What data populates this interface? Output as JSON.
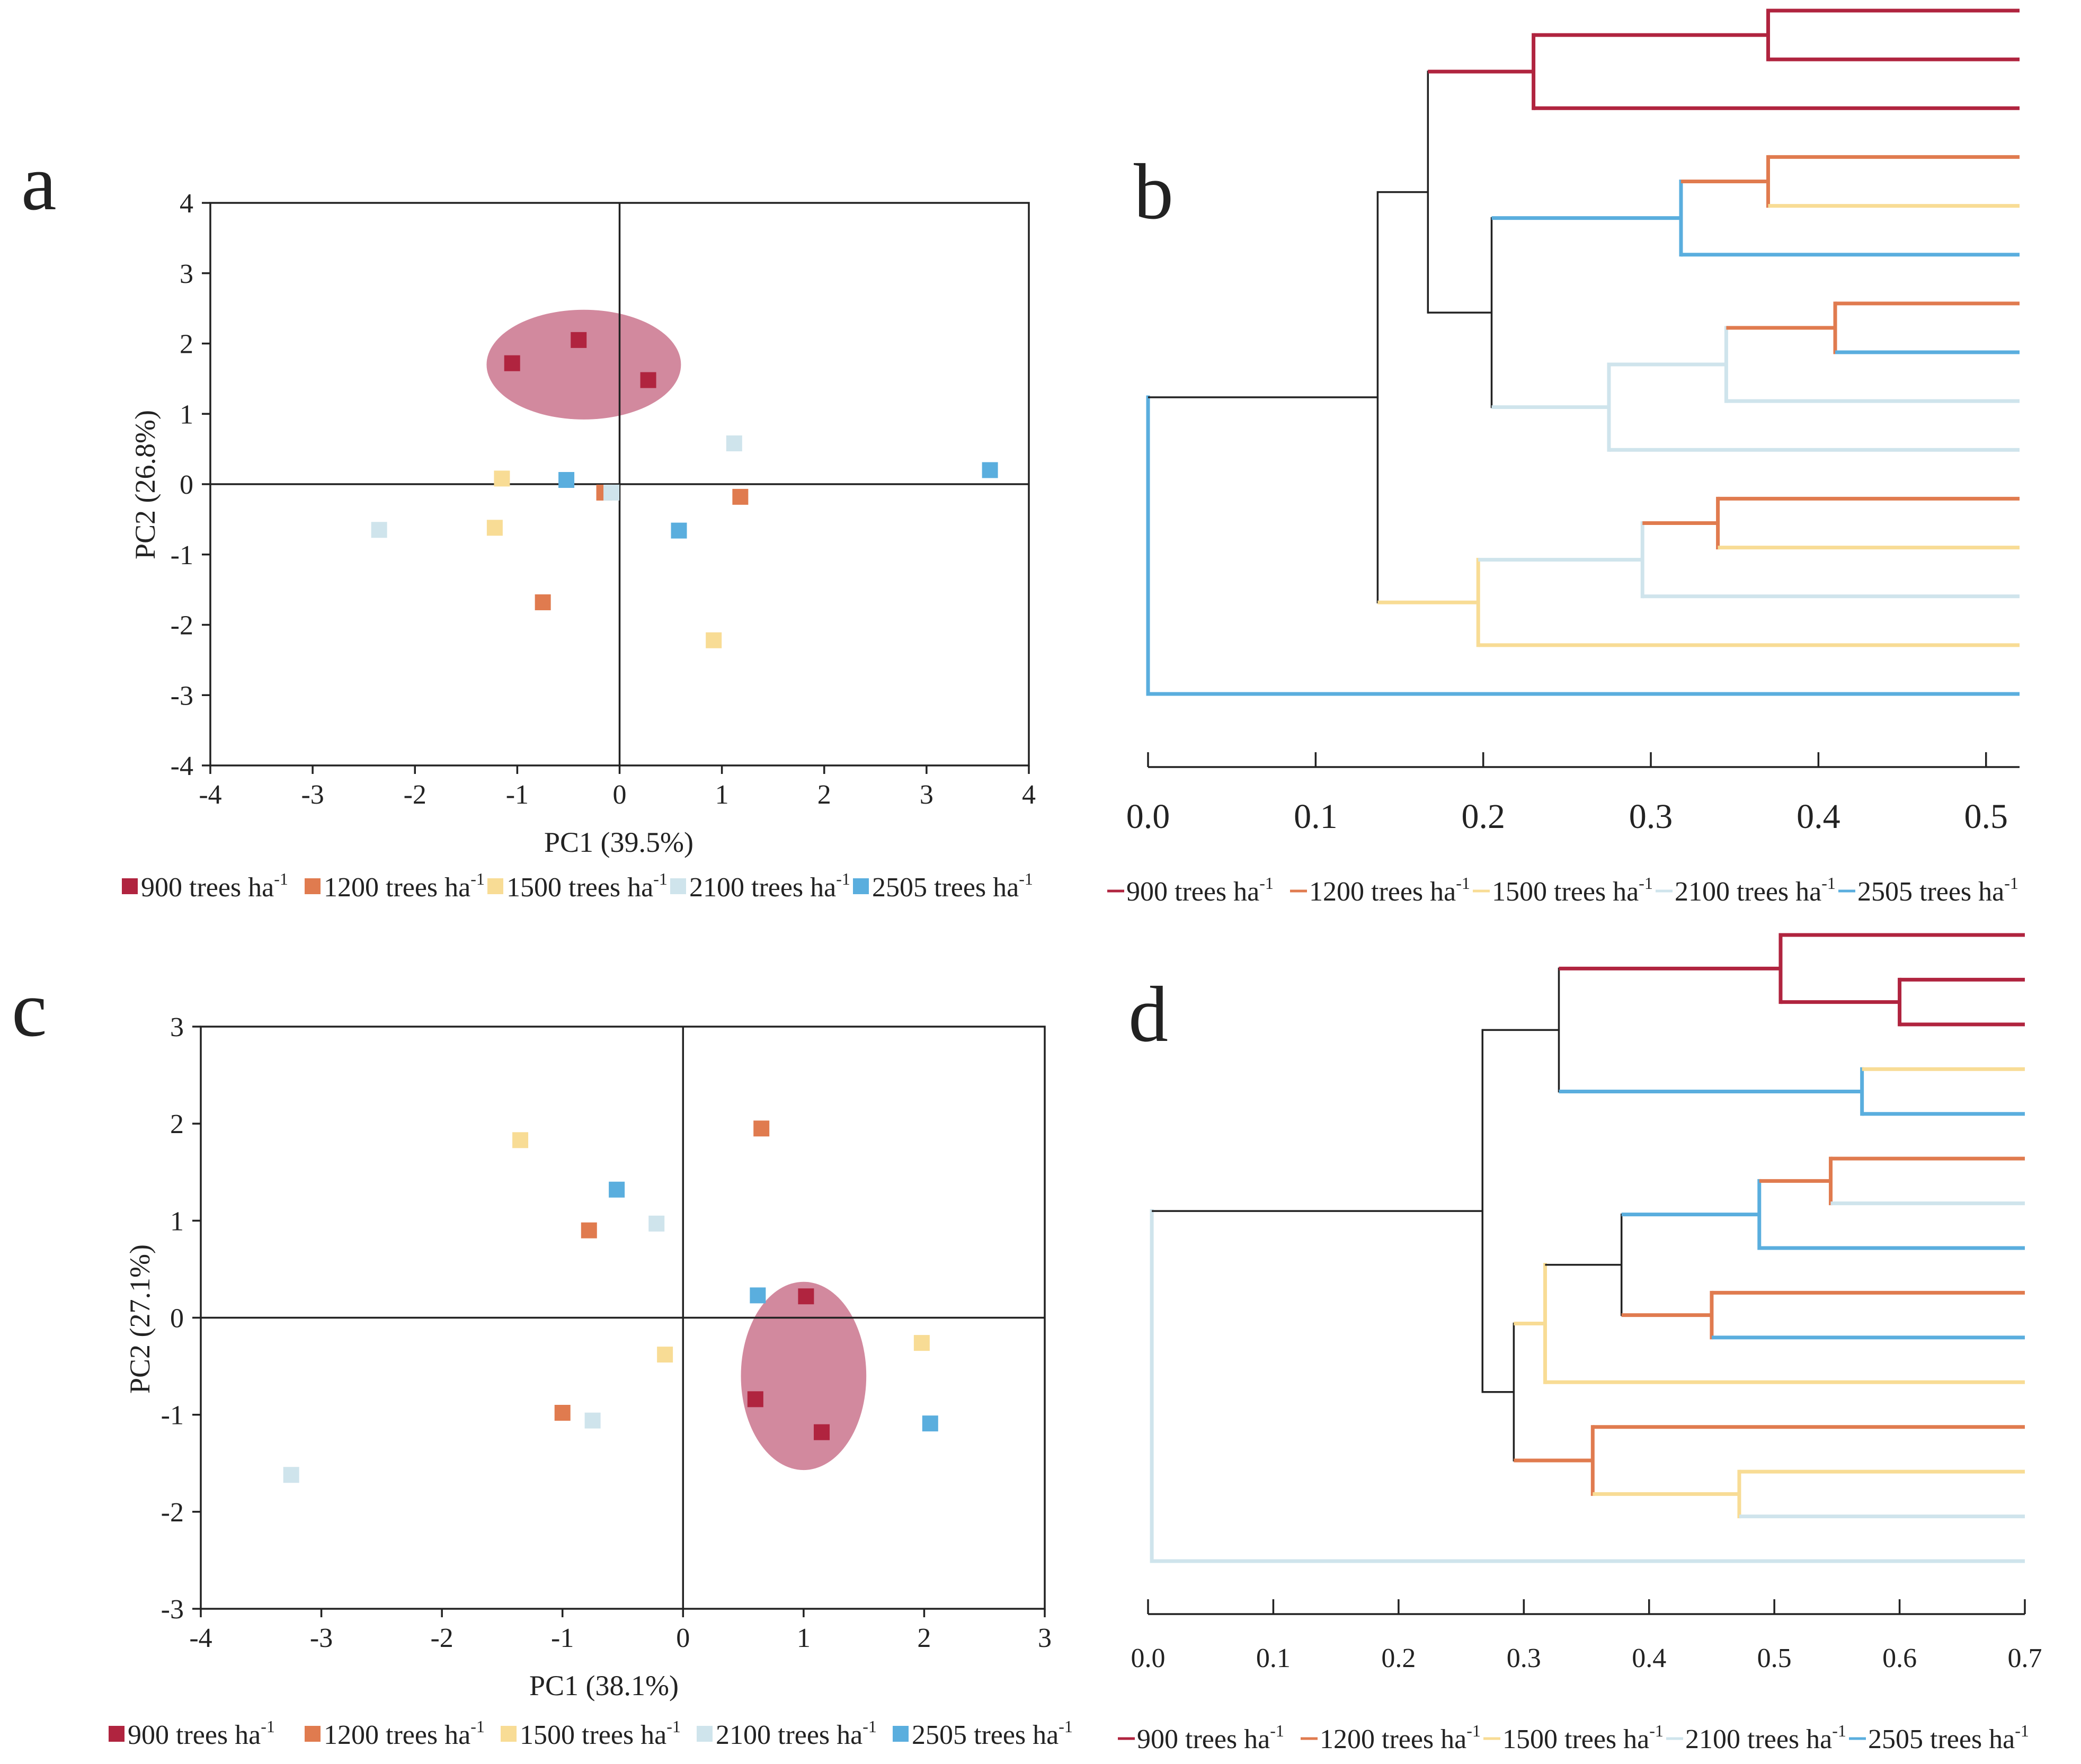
{
  "colors": {
    "900": "#b0243f",
    "1200": "#e07b4f",
    "1500": "#f8dc95",
    "2100": "#cfe4ec",
    "2505": "#5aaede",
    "black": "#222222",
    "ellipse": "#c05c78"
  },
  "legend": {
    "entries": [
      {
        "key": "900",
        "label": "900 trees ha",
        "sup": "-1"
      },
      {
        "key": "1200",
        "label": "1200 trees ha",
        "sup": "-1"
      },
      {
        "key": "1500",
        "label": "1500 trees ha",
        "sup": "-1"
      },
      {
        "key": "2100",
        "label": "2100 trees ha",
        "sup": "-1"
      },
      {
        "key": "2505",
        "label": "2505 trees ha",
        "sup": "-1"
      }
    ]
  },
  "chart_data": [
    {
      "id": "a",
      "panel_label": "a",
      "type": "scatter",
      "xlabel": "PC1 (39.5%)",
      "ylabel": "PC2 (26.8%)",
      "xlim": [
        -4,
        4
      ],
      "ylim": [
        -4,
        4
      ],
      "xticks": [
        -4,
        -3,
        -2,
        -1,
        0,
        1,
        2,
        3,
        4
      ],
      "yticks": [
        -4,
        -3,
        -2,
        -1,
        0,
        1,
        2,
        3,
        4
      ],
      "ellipse": {
        "cx": -0.35,
        "cy": 1.7,
        "rx": 0.95,
        "ry": 0.78
      },
      "points": [
        {
          "g": "900",
          "x": -1.05,
          "y": 1.72
        },
        {
          "g": "900",
          "x": -0.4,
          "y": 2.05
        },
        {
          "g": "900",
          "x": 0.28,
          "y": 1.48
        },
        {
          "g": "1200",
          "x": -0.75,
          "y": -1.68
        },
        {
          "g": "1200",
          "x": -0.15,
          "y": -0.12
        },
        {
          "g": "1200",
          "x": 1.18,
          "y": -0.18
        },
        {
          "g": "1500",
          "x": -1.15,
          "y": 0.08
        },
        {
          "g": "1500",
          "x": -1.22,
          "y": -0.62
        },
        {
          "g": "1500",
          "x": 0.92,
          "y": -2.22
        },
        {
          "g": "2100",
          "x": -2.35,
          "y": -0.65
        },
        {
          "g": "2100",
          "x": -0.08,
          "y": -0.12
        },
        {
          "g": "2100",
          "x": 1.12,
          "y": 0.58
        },
        {
          "g": "2505",
          "x": -0.52,
          "y": 0.06
        },
        {
          "g": "2505",
          "x": 0.58,
          "y": -0.66
        },
        {
          "g": "2505",
          "x": 3.62,
          "y": 0.2
        }
      ]
    },
    {
      "id": "b",
      "panel_label": "b",
      "type": "dendrogram",
      "xlim": [
        0,
        0.52
      ],
      "xticks": [
        0.0,
        0.1,
        0.2,
        0.3,
        0.4,
        0.5
      ],
      "xtick_labels": [
        "0.0",
        "0.1",
        "0.2",
        "0.3",
        "0.4",
        "0.5"
      ],
      "leaves": [
        "900",
        "900",
        "900",
        "1200",
        "1500",
        "2505",
        "1200",
        "2505",
        "2100",
        "2100",
        "1200",
        "1500",
        "2100",
        "1500",
        "2505"
      ],
      "merges": [
        {
          "a": "L0",
          "b": "L1",
          "h": 0.37,
          "c": "900"
        },
        {
          "a": "N0",
          "b": "L2",
          "h": 0.23,
          "c": "900"
        },
        {
          "a": "L3",
          "b": "L4",
          "h": 0.37,
          "c": "1200"
        },
        {
          "a": "N2",
          "b": "L5",
          "h": 0.318,
          "c": "2505"
        },
        {
          "a": "L6",
          "b": "L7",
          "h": 0.41,
          "c": "1200"
        },
        {
          "a": "N4",
          "b": "L8",
          "h": 0.345,
          "c": "2100"
        },
        {
          "a": "N5",
          "b": "L9",
          "h": 0.275,
          "c": "2100"
        },
        {
          "a": "N3",
          "b": "N6",
          "h": 0.205,
          "c": "black"
        },
        {
          "a": "N1",
          "b": "N7",
          "h": 0.167,
          "c": "black"
        },
        {
          "a": "L10",
          "b": "L11",
          "h": 0.34,
          "c": "1200"
        },
        {
          "a": "N9",
          "b": "L12",
          "h": 0.295,
          "c": "2100"
        },
        {
          "a": "N10",
          "b": "L13",
          "h": 0.197,
          "c": "1500"
        },
        {
          "a": "N8",
          "b": "N11",
          "h": 0.137,
          "c": "black"
        },
        {
          "a": "N12",
          "b": "L14",
          "h": 0.0,
          "c": "2505"
        }
      ]
    },
    {
      "id": "c",
      "panel_label": "c",
      "type": "scatter",
      "xlabel": "PC1 (38.1%)",
      "ylabel": "PC2 (27.1%)",
      "xlim": [
        -4,
        3
      ],
      "ylim": [
        -3,
        3
      ],
      "xticks": [
        -4,
        -3,
        -2,
        -1,
        0,
        1,
        2,
        3
      ],
      "yticks": [
        -3,
        -2,
        -1,
        0,
        1,
        2,
        3
      ],
      "ellipse": {
        "cx": 1.0,
        "cy": -0.6,
        "rx": 0.52,
        "ry": 0.97
      },
      "points": [
        {
          "g": "900",
          "x": 1.02,
          "y": 0.22
        },
        {
          "g": "900",
          "x": 0.6,
          "y": -0.84
        },
        {
          "g": "900",
          "x": 1.15,
          "y": -1.18
        },
        {
          "g": "1200",
          "x": 0.65,
          "y": 1.95
        },
        {
          "g": "1200",
          "x": -0.78,
          "y": 0.9
        },
        {
          "g": "1200",
          "x": -1.0,
          "y": -0.98
        },
        {
          "g": "1500",
          "x": -1.35,
          "y": 1.83
        },
        {
          "g": "1500",
          "x": -0.15,
          "y": -0.38
        },
        {
          "g": "1500",
          "x": 1.98,
          "y": -0.26
        },
        {
          "g": "2100",
          "x": -0.22,
          "y": 0.97
        },
        {
          "g": "2100",
          "x": -0.75,
          "y": -1.06
        },
        {
          "g": "2100",
          "x": -3.25,
          "y": -1.62
        },
        {
          "g": "2505",
          "x": -0.55,
          "y": 1.32
        },
        {
          "g": "2505",
          "x": 0.62,
          "y": 0.23
        },
        {
          "g": "2505",
          "x": 2.05,
          "y": -1.09
        }
      ]
    },
    {
      "id": "d",
      "panel_label": "d",
      "type": "dendrogram",
      "xlim": [
        0,
        0.7
      ],
      "xticks": [
        0.0,
        0.1,
        0.2,
        0.3,
        0.4,
        0.5,
        0.6,
        0.7
      ],
      "xtick_labels": [
        "0.0",
        "0.1",
        "0.2",
        "0.3",
        "0.4",
        "0.5",
        "0.6",
        "0.7"
      ],
      "leaves": [
        "900",
        "900",
        "900",
        "1500",
        "2505",
        "1200",
        "2100",
        "2505",
        "1200",
        "2505",
        "1500",
        "1200",
        "1500",
        "2100",
        "2100"
      ],
      "merges": [
        {
          "a": "L1",
          "b": "L2",
          "h": 0.6,
          "c": "900"
        },
        {
          "a": "L0",
          "b": "N0",
          "h": 0.505,
          "c": "900"
        },
        {
          "a": "L3",
          "b": "L4",
          "h": 0.57,
          "c": "2505"
        },
        {
          "a": "N1",
          "b": "N2",
          "h": 0.328,
          "c": "black"
        },
        {
          "a": "L5",
          "b": "L6",
          "h": 0.545,
          "c": "1200"
        },
        {
          "a": "N4",
          "b": "L7",
          "h": 0.488,
          "c": "2505"
        },
        {
          "a": "L8",
          "b": "L9",
          "h": 0.45,
          "c": "1200"
        },
        {
          "a": "N5",
          "b": "N6",
          "h": 0.378,
          "c": "black"
        },
        {
          "a": "N7",
          "b": "L10",
          "h": 0.317,
          "c": "1500"
        },
        {
          "a": "L12",
          "b": "L13",
          "h": 0.472,
          "c": "1500"
        },
        {
          "a": "L11",
          "b": "N9",
          "h": 0.355,
          "c": "1200"
        },
        {
          "a": "N8",
          "b": "N10",
          "h": 0.292,
          "c": "black"
        },
        {
          "a": "N3",
          "b": "N11",
          "h": 0.267,
          "c": "black"
        },
        {
          "a": "N12",
          "b": "L14",
          "h": 0.003,
          "c": "2100"
        }
      ]
    }
  ]
}
